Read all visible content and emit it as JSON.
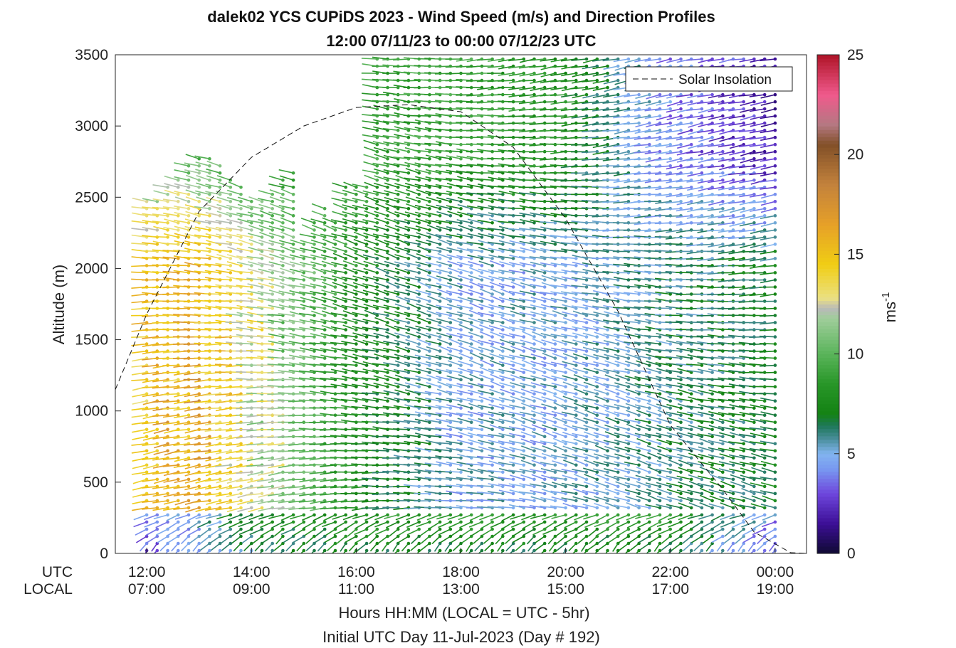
{
  "chart_data": {
    "type": "wind-barb-profile",
    "title": "dalek02 YCS CUPiDS 2023 - Wind Speed (m/s) and Direction Profiles",
    "subtitle": "12:00 07/11/23 to 00:00 07/12/23  UTC",
    "ylabel": "Altitude (m)",
    "xlabel": "Hours HH:MM  (LOCAL = UTC - 5hr)",
    "xlabel2": "Initial UTC Day 11-Jul-2023 (Day # 192)",
    "ylim": [
      0,
      3500
    ],
    "xlim_hours_utc": [
      11.4,
      24.6
    ],
    "y_ticks": [
      "0",
      "500",
      "1000",
      "1500",
      "2000",
      "2500",
      "3000",
      "3500"
    ],
    "x_row_labels": [
      "UTC",
      "LOCAL"
    ],
    "x_ticks_utc": [
      "12:00",
      "14:00",
      "16:00",
      "18:00",
      "20:00",
      "22:00",
      "00:00"
    ],
    "x_ticks_local": [
      "07:00",
      "09:00",
      "11:00",
      "13:00",
      "15:00",
      "17:00",
      "19:00"
    ],
    "legend": {
      "entries": [
        "Solar Insolation"
      ],
      "location": "top-right"
    },
    "colorbar": {
      "label": "ms",
      "exponent": "-1",
      "range": [
        0,
        25
      ],
      "ticks": [
        "0",
        "5",
        "10",
        "15",
        "20",
        "25"
      ]
    },
    "solar_insolation": {
      "style": "dashed",
      "points": [
        [
          11.4,
          1150
        ],
        [
          12.0,
          1680
        ],
        [
          13.0,
          2400
        ],
        [
          14.0,
          2780
        ],
        [
          15.0,
          3000
        ],
        [
          16.0,
          3130
        ],
        [
          17.0,
          3150
        ],
        [
          18.0,
          3100
        ],
        [
          19.0,
          2850
        ],
        [
          20.0,
          2350
        ],
        [
          21.0,
          1700
        ],
        [
          22.0,
          900
        ],
        [
          23.0,
          450
        ],
        [
          23.6,
          150
        ],
        [
          24.3,
          5
        ],
        [
          24.6,
          0
        ]
      ]
    },
    "profiles": {
      "time_step_hours": 0.2,
      "altitude_step_m": 50,
      "description": "Wind barbs every ~12 min and ~50 m; colour = speed (m/s) per colorbar",
      "speed_summary": [
        {
          "time_utc": "12:00",
          "low_level_ms": 3,
          "mid_level_ms": 15,
          "upper_ms": 10
        },
        {
          "time_utc": "13:00",
          "low_level_ms": 4,
          "mid_level_ms": 16,
          "upper_ms": 10
        },
        {
          "time_utc": "14:00",
          "low_level_ms": 6,
          "mid_level_ms": 13,
          "upper_ms": 9
        },
        {
          "time_utc": "16:00",
          "low_level_ms": 7,
          "mid_level_ms": 8,
          "upper_ms": 9
        },
        {
          "time_utc": "18:00",
          "low_level_ms": 7,
          "mid_level_ms": 5,
          "upper_ms": 9
        },
        {
          "time_utc": "20:00",
          "low_level_ms": 7,
          "mid_level_ms": 5,
          "upper_ms": 8
        },
        {
          "time_utc": "22:00",
          "low_level_ms": 7,
          "mid_level_ms": 6,
          "upper_ms": 4
        },
        {
          "time_utc": "00:00",
          "low_level_ms": 3,
          "mid_level_ms": 7,
          "upper_ms": 2
        }
      ]
    }
  }
}
